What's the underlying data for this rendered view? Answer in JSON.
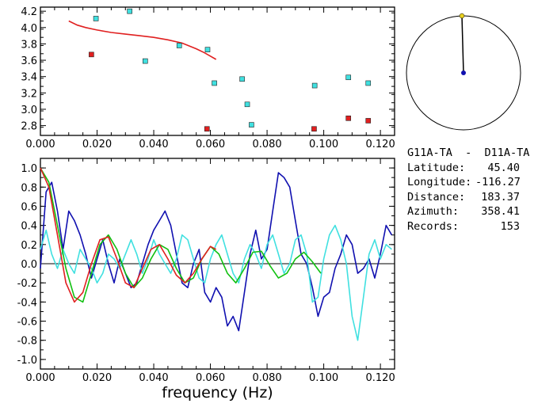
{
  "station_pair": {
    "title": "G11A-TA  -  D11A-TA",
    "fields": [
      {
        "label": "Latitude:",
        "value": "45.40"
      },
      {
        "label": "Longitude:",
        "value": "-116.27"
      },
      {
        "label": "Distance:",
        "value": "183.37"
      },
      {
        "label": "Azimuth:",
        "value": "358.41"
      },
      {
        "label": "Records:",
        "value": "153"
      }
    ]
  },
  "azimuth_dial": {
    "azimuth_deg": 358.41
  },
  "chart_data": [
    {
      "type": "scatter",
      "xlim": [
        0.0,
        0.125
      ],
      "ylim": [
        2.68,
        4.25
      ],
      "xticks": [
        "0.000",
        "0.020",
        "0.040",
        "0.060",
        "0.080",
        "0.100",
        "0.120"
      ],
      "yticks": [
        "2.8",
        "3.0",
        "3.2",
        "3.4",
        "3.6",
        "3.8",
        "4.0",
        "4.2"
      ],
      "series": [
        {
          "color": "#40e0e0",
          "x": [
            0.0196,
            0.0315,
            0.037,
            0.049,
            0.059,
            0.0614,
            0.0712,
            0.073,
            0.0745,
            0.0968,
            0.1087,
            0.1157
          ],
          "y": [
            4.11,
            4.2,
            3.59,
            3.78,
            3.73,
            3.32,
            3.37,
            3.06,
            2.81,
            3.29,
            3.39,
            3.32
          ]
        },
        {
          "color": "#e02020",
          "x": [
            0.018,
            0.0588,
            0.0966,
            0.1087,
            0.1157
          ],
          "y": [
            3.67,
            2.76,
            2.76,
            2.89,
            2.86
          ]
        }
      ],
      "curve": {
        "color": "#e02020",
        "x": [
          0.01,
          0.013,
          0.016,
          0.02,
          0.025,
          0.03,
          0.035,
          0.04,
          0.045,
          0.05,
          0.055,
          0.058,
          0.06,
          0.062
        ],
        "y": [
          4.08,
          4.03,
          4.0,
          3.97,
          3.94,
          3.92,
          3.9,
          3.88,
          3.85,
          3.81,
          3.74,
          3.69,
          3.65,
          3.61
        ]
      }
    },
    {
      "type": "line",
      "xlim": [
        0.0,
        0.125
      ],
      "ylim": [
        -1.1,
        1.1
      ],
      "xticks": [
        "0.000",
        "0.020",
        "0.040",
        "0.060",
        "0.080",
        "0.100",
        "0.120"
      ],
      "yticks": [
        "1.0",
        "0.8",
        "0.6",
        "0.4",
        "0.2",
        "0.0",
        "-0.2",
        "-0.4",
        "-0.6",
        "-0.8",
        "-1.0"
      ],
      "xlabel": "frequency (Hz)",
      "series": [
        {
          "color": "#1010b0",
          "x": [
            0.0,
            0.002,
            0.004,
            0.006,
            0.008,
            0.01,
            0.012,
            0.014,
            0.016,
            0.018,
            0.02,
            0.022,
            0.024,
            0.026,
            0.028,
            0.03,
            0.032,
            0.034,
            0.036,
            0.038,
            0.04,
            0.042,
            0.044,
            0.046,
            0.048,
            0.05,
            0.052,
            0.054,
            0.056,
            0.058,
            0.06,
            0.062,
            0.064,
            0.066,
            0.068,
            0.07,
            0.072,
            0.074,
            0.076,
            0.078,
            0.08,
            0.082,
            0.084,
            0.086,
            0.088,
            0.09,
            0.092,
            0.094,
            0.096,
            0.098,
            0.1,
            0.102,
            0.104,
            0.106,
            0.108,
            0.11,
            0.112,
            0.114,
            0.116,
            0.118,
            0.12,
            0.122,
            0.124
          ],
          "y": [
            -0.05,
            0.75,
            0.85,
            0.55,
            0.15,
            0.55,
            0.45,
            0.3,
            0.1,
            -0.15,
            0.05,
            0.25,
            0.0,
            -0.2,
            0.05,
            -0.1,
            -0.25,
            -0.2,
            0.0,
            0.2,
            0.35,
            0.45,
            0.55,
            0.4,
            0.1,
            -0.2,
            -0.25,
            0.0,
            0.15,
            -0.3,
            -0.4,
            -0.25,
            -0.35,
            -0.65,
            -0.55,
            -0.7,
            -0.3,
            0.1,
            0.35,
            0.05,
            0.15,
            0.55,
            0.95,
            0.9,
            0.8,
            0.45,
            0.1,
            0.0,
            -0.25,
            -0.55,
            -0.35,
            -0.3,
            -0.05,
            0.1,
            0.3,
            0.2,
            -0.1,
            -0.05,
            0.05,
            -0.15,
            0.1,
            0.4,
            0.3
          ]
        },
        {
          "color": "#40e0e0",
          "x": [
            0.0,
            0.002,
            0.004,
            0.006,
            0.008,
            0.01,
            0.012,
            0.014,
            0.016,
            0.018,
            0.02,
            0.022,
            0.024,
            0.026,
            0.028,
            0.03,
            0.032,
            0.034,
            0.036,
            0.038,
            0.04,
            0.042,
            0.044,
            0.046,
            0.048,
            0.05,
            0.052,
            0.054,
            0.056,
            0.058,
            0.06,
            0.062,
            0.064,
            0.066,
            0.068,
            0.07,
            0.072,
            0.074,
            0.076,
            0.078,
            0.08,
            0.082,
            0.084,
            0.086,
            0.088,
            0.09,
            0.092,
            0.094,
            0.096,
            0.098,
            0.1,
            0.102,
            0.104,
            0.106,
            0.108,
            0.11,
            0.112,
            0.114,
            0.116,
            0.118,
            0.12,
            0.122,
            0.124
          ],
          "y": [
            0.15,
            0.35,
            0.1,
            -0.05,
            0.15,
            0.0,
            -0.1,
            0.15,
            0.05,
            -0.05,
            -0.2,
            -0.1,
            0.1,
            0.05,
            -0.05,
            0.1,
            0.25,
            0.1,
            -0.1,
            0.05,
            0.25,
            0.1,
            0.0,
            -0.1,
            0.05,
            0.3,
            0.25,
            0.05,
            -0.15,
            -0.2,
            0.05,
            0.2,
            0.3,
            0.1,
            -0.1,
            -0.2,
            0.05,
            0.2,
            0.1,
            -0.05,
            0.2,
            0.3,
            0.1,
            -0.1,
            0.0,
            0.25,
            0.3,
            0.1,
            -0.4,
            -0.35,
            0.05,
            0.3,
            0.4,
            0.25,
            0.0,
            -0.55,
            -0.8,
            -0.35,
            0.1,
            0.25,
            0.05,
            0.2,
            0.15
          ]
        },
        {
          "color": "#10c010",
          "x": [
            0.0,
            0.003,
            0.006,
            0.009,
            0.012,
            0.015,
            0.018,
            0.021,
            0.024,
            0.027,
            0.03,
            0.033,
            0.036,
            0.039,
            0.042,
            0.045,
            0.048,
            0.051,
            0.054,
            0.057,
            0.06,
            0.063,
            0.066,
            0.069,
            0.072,
            0.075,
            0.078,
            0.081,
            0.084,
            0.087,
            0.09,
            0.093,
            0.096,
            0.099
          ],
          "y": [
            1.0,
            0.85,
            0.4,
            -0.05,
            -0.35,
            -0.4,
            -0.1,
            0.2,
            0.3,
            0.15,
            -0.1,
            -0.25,
            -0.15,
            0.05,
            0.2,
            0.15,
            -0.05,
            -0.2,
            -0.15,
            0.05,
            0.18,
            0.1,
            -0.1,
            -0.2,
            -0.05,
            0.12,
            0.13,
            -0.02,
            -0.15,
            -0.1,
            0.05,
            0.12,
            0.02,
            -0.1
          ]
        },
        {
          "color": "#e02020",
          "x": [
            0.0,
            0.003,
            0.006,
            0.009,
            0.012,
            0.015,
            0.018,
            0.021,
            0.024,
            0.027,
            0.03,
            0.033,
            0.036,
            0.039,
            0.042,
            0.045,
            0.048,
            0.051,
            0.054,
            0.057,
            0.06,
            0.062
          ],
          "y": [
            1.0,
            0.8,
            0.3,
            -0.2,
            -0.4,
            -0.3,
            0.0,
            0.25,
            0.28,
            0.05,
            -0.2,
            -0.25,
            -0.05,
            0.15,
            0.2,
            0.05,
            -0.12,
            -0.2,
            -0.1,
            0.05,
            0.18,
            0.15
          ]
        }
      ]
    }
  ]
}
